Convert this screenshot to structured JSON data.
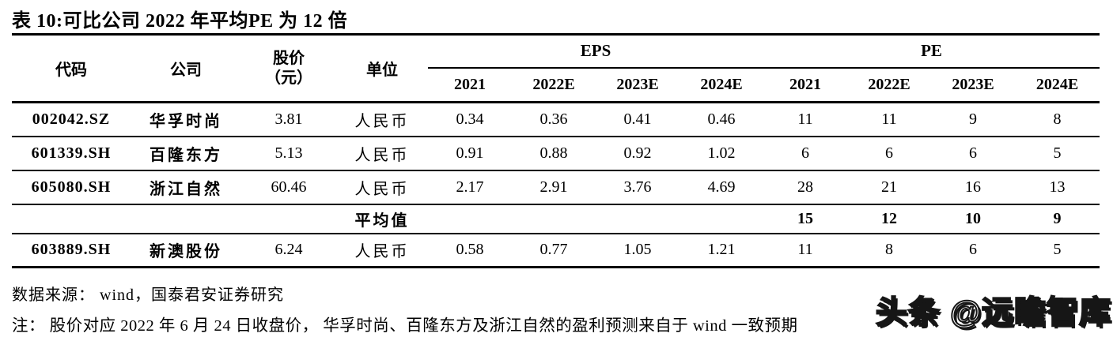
{
  "title": "表 10:可比公司 2022 年平均PE 为 12 倍",
  "table": {
    "headers": {
      "code": "代码",
      "company": "公司",
      "price_line1": "股价",
      "price_line2": "（元）",
      "unit": "单位",
      "eps_group": "EPS",
      "pe_group": "PE",
      "years": [
        "2021",
        "2022E",
        "2023E",
        "2024E"
      ]
    },
    "rows": [
      {
        "code": "002042.SZ",
        "company": "华孚时尚",
        "price": "3.81",
        "unit": "人民币",
        "eps": [
          "0.34",
          "0.36",
          "0.41",
          "0.46"
        ],
        "pe": [
          "11",
          "11",
          "9",
          "8"
        ]
      },
      {
        "code": "601339.SH",
        "company": "百隆东方",
        "price": "5.13",
        "unit": "人民币",
        "eps": [
          "0.91",
          "0.88",
          "0.92",
          "1.02"
        ],
        "pe": [
          "6",
          "6",
          "6",
          "5"
        ]
      },
      {
        "code": "605080.SH",
        "company": "浙江自然",
        "price": "60.46",
        "unit": "人民币",
        "eps": [
          "2.17",
          "2.91",
          "3.76",
          "4.69"
        ],
        "pe": [
          "28",
          "21",
          "16",
          "13"
        ]
      },
      {
        "average": true,
        "label": "平均值",
        "code": "",
        "company": "",
        "price": "",
        "unit": "",
        "eps": [
          "",
          "",
          "",
          ""
        ],
        "pe": [
          "15",
          "12",
          "10",
          "9"
        ]
      },
      {
        "code": "603889.SH",
        "company": "新澳股份",
        "price": "6.24",
        "unit": "人民币",
        "eps": [
          "0.58",
          "0.77",
          "1.05",
          "1.21"
        ],
        "pe": [
          "11",
          "8",
          "6",
          "5"
        ]
      }
    ]
  },
  "source": "数据来源： wind，国泰君安证券研究",
  "note": "注： 股价对应 2022 年 6 月 24 日收盘价， 华孚时尚、百隆东方及浙江自然的盈利预测来自于 wind 一致预期",
  "watermark": "头条 @远瞻智库",
  "colors": {
    "text": "#000000",
    "background": "#ffffff"
  }
}
